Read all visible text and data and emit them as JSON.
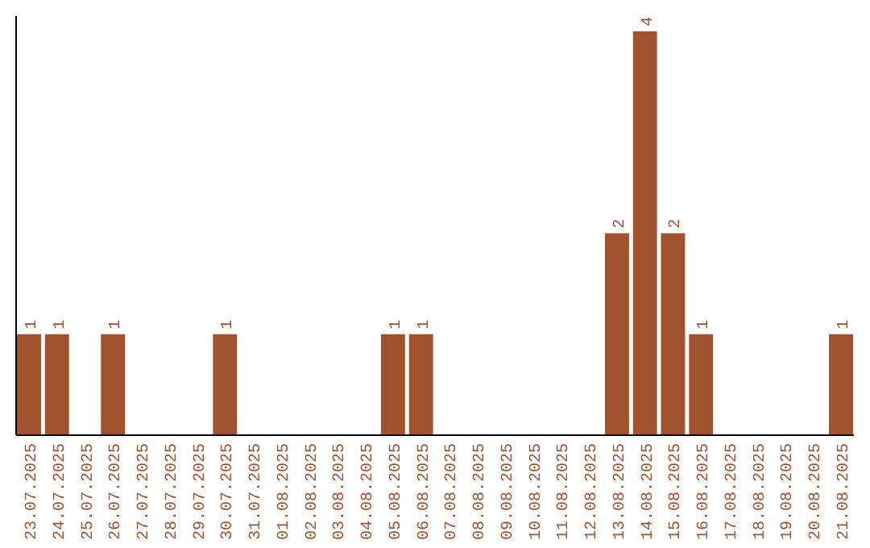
{
  "chart_data": {
    "type": "bar",
    "categories": [
      "23.07.2025",
      "24.07.2025",
      "25.07.2025",
      "26.07.2025",
      "27.07.2025",
      "28.07.2025",
      "29.07.2025",
      "30.07.2025",
      "31.07.2025",
      "01.08.2025",
      "02.08.2025",
      "03.08.2025",
      "04.08.2025",
      "05.08.2025",
      "06.08.2025",
      "07.08.2025",
      "08.08.2025",
      "09.08.2025",
      "10.08.2025",
      "11.08.2025",
      "12.08.2025",
      "13.08.2025",
      "14.08.2025",
      "15.08.2025",
      "16.08.2025",
      "17.08.2025",
      "18.08.2025",
      "19.08.2025",
      "20.08.2025",
      "21.08.2025"
    ],
    "values": [
      1,
      1,
      0,
      1,
      0,
      0,
      0,
      1,
      0,
      0,
      0,
      0,
      0,
      1,
      1,
      0,
      0,
      0,
      0,
      0,
      0,
      2,
      4,
      2,
      1,
      0,
      0,
      0,
      0,
      1
    ],
    "value_labels": [
      "1",
      "1",
      null,
      "1",
      null,
      null,
      null,
      "1",
      null,
      null,
      null,
      null,
      null,
      "1",
      "1",
      null,
      null,
      null,
      null,
      null,
      null,
      "2",
      "4",
      "2",
      "1",
      null,
      null,
      null,
      null,
      "1"
    ],
    "color": "#a0522d",
    "ylim": [
      0,
      4.15
    ],
    "tick_labels": "x"
  }
}
